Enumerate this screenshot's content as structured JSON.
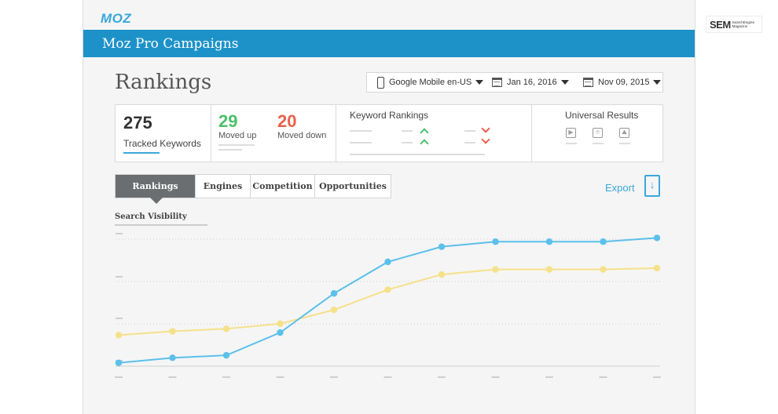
{
  "brand": {
    "logo": "MOZ",
    "accent": "#1d92c9"
  },
  "header": {
    "campaign_title": "Moz Pro Campaigns"
  },
  "page": {
    "title": "Rankings"
  },
  "filters": {
    "engine": "Google Mobile en-US",
    "date_from": "Jan 16, 2016",
    "date_to": "Nov 09, 2015"
  },
  "stats": {
    "tracked_count": "275",
    "tracked_label": "Tracked Keywords",
    "moved_up_count": "29",
    "moved_up_label": "Moved up",
    "moved_down_count": "20",
    "moved_down_label": "Moved down",
    "keyword_rankings_title": "Keyword Rankings",
    "universal_results_title": "Universal Results"
  },
  "tabs": [
    {
      "label": "Rankings",
      "active": true
    },
    {
      "label": "Engines",
      "active": false
    },
    {
      "label": "Competition",
      "active": false
    },
    {
      "label": "Opportunities",
      "active": false
    }
  ],
  "export_label": "Export",
  "chart": {
    "label": "Search Visibility"
  },
  "chart_data": {
    "type": "line",
    "title": "Search Visibility",
    "x": [
      1,
      2,
      3,
      4,
      5,
      6,
      7,
      8,
      9,
      10,
      11
    ],
    "ylim": [
      0,
      100
    ],
    "grid": true,
    "series": [
      {
        "color": "#5bc0eb",
        "values": [
          2,
          6,
          8,
          26,
          57,
          82,
          94,
          98,
          98,
          98,
          101
        ]
      },
      {
        "color": "#f5e18a",
        "values": [
          24,
          27,
          29,
          33,
          44,
          60,
          72,
          76,
          76,
          76,
          77
        ]
      }
    ]
  },
  "watermark": {
    "main": "SEM",
    "sub_line1": "SearchEngine",
    "sub_line2": "Magazine"
  }
}
